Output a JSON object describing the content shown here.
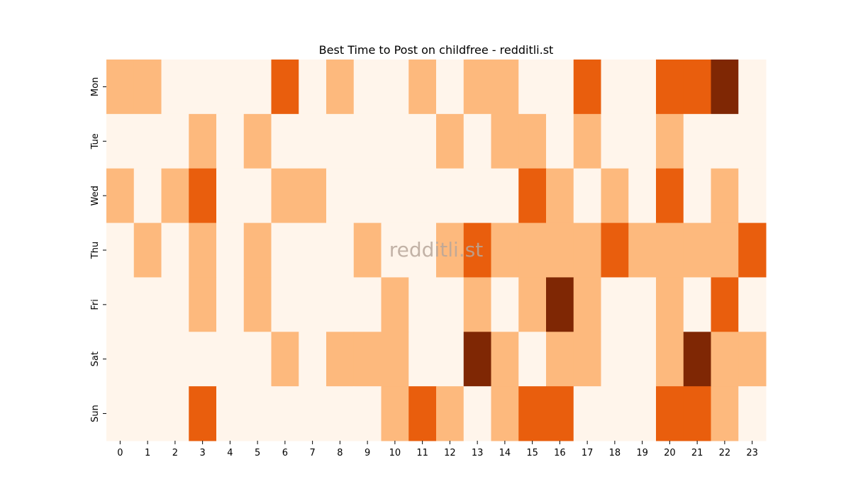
{
  "chart_data": {
    "type": "heatmap",
    "title": "Best Time to Post on childfree - redditli.st",
    "xlabel": "",
    "ylabel": "",
    "watermark": "redditli.st",
    "x_categories": [
      "0",
      "1",
      "2",
      "3",
      "4",
      "5",
      "6",
      "7",
      "8",
      "9",
      "10",
      "11",
      "12",
      "13",
      "14",
      "15",
      "16",
      "17",
      "18",
      "19",
      "20",
      "21",
      "22",
      "23"
    ],
    "y_categories": [
      "Mon",
      "Tue",
      "Wed",
      "Thu",
      "Fri",
      "Sat",
      "Sun"
    ],
    "value_scale": "relative intensity levels 0-3 (no colorbar shown)",
    "colors": [
      "#fff5eb",
      "#fdb97d",
      "#e95e0d",
      "#7f2704"
    ],
    "values": [
      [
        1,
        1,
        0,
        0,
        0,
        0,
        2,
        0,
        1,
        0,
        0,
        1,
        0,
        1,
        1,
        0,
        0,
        2,
        0,
        0,
        2,
        2,
        3,
        0
      ],
      [
        0,
        0,
        0,
        1,
        0,
        1,
        0,
        0,
        0,
        0,
        0,
        0,
        1,
        0,
        1,
        1,
        0,
        1,
        0,
        0,
        1,
        0,
        0,
        0
      ],
      [
        1,
        0,
        1,
        2,
        0,
        0,
        1,
        1,
        0,
        0,
        0,
        0,
        0,
        0,
        0,
        2,
        1,
        0,
        1,
        0,
        2,
        0,
        1,
        0
      ],
      [
        0,
        1,
        0,
        1,
        0,
        1,
        0,
        0,
        0,
        1,
        0,
        0,
        1,
        2,
        1,
        1,
        1,
        1,
        2,
        1,
        1,
        1,
        1,
        2
      ],
      [
        0,
        0,
        0,
        1,
        0,
        1,
        0,
        0,
        0,
        0,
        1,
        0,
        0,
        1,
        0,
        1,
        3,
        1,
        0,
        0,
        1,
        0,
        2,
        0
      ],
      [
        0,
        0,
        0,
        0,
        0,
        0,
        1,
        0,
        1,
        1,
        1,
        0,
        0,
        3,
        1,
        0,
        1,
        1,
        0,
        0,
        1,
        3,
        1,
        1
      ],
      [
        0,
        0,
        0,
        2,
        0,
        0,
        0,
        0,
        0,
        0,
        1,
        2,
        1,
        0,
        1,
        2,
        2,
        0,
        0,
        0,
        2,
        2,
        1,
        0
      ]
    ],
    "grid": false,
    "legend": "none"
  }
}
